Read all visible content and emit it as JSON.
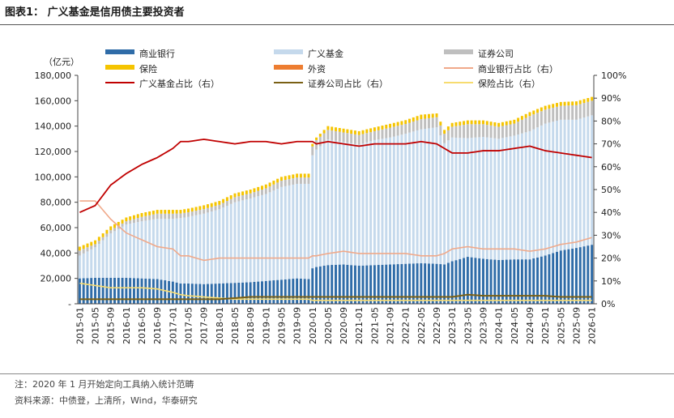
{
  "header": {
    "title": "图表1：  广义基金是信用债主要投资者"
  },
  "footer": {
    "note": "注：2020 年 1 月开始定向工具纳入统计范畴",
    "source": "资料来源：中债登，上清所，Wind，华泰研究"
  },
  "chart_data": {
    "type": "bar",
    "stacked": true,
    "title": "",
    "ylabel": "（亿元）",
    "ylim": [
      0,
      180000
    ],
    "y2lim": [
      0,
      1.0
    ],
    "y_ticks": [
      "-",
      "20,000",
      "40,000",
      "60,000",
      "80,000",
      "100,000",
      "120,000",
      "140,000",
      "160,000",
      "180,000"
    ],
    "y2_ticks": [
      "0%",
      "10%",
      "20%",
      "30%",
      "40%",
      "50%",
      "60%",
      "70%",
      "80%",
      "90%",
      "100%"
    ],
    "x_tick_labels": [
      "2015-01",
      "2015-05",
      "2015-09",
      "2016-01",
      "2016-05",
      "2016-09",
      "2017-01",
      "2017-05",
      "2017-09",
      "2018-01",
      "2018-05",
      "2018-09",
      "2019-01",
      "2019-05",
      "2019-09",
      "2020-01",
      "2020-05",
      "2020-09",
      "2021-01",
      "2021-05",
      "2021-09",
      "2022-01",
      "2022-05",
      "2022-09",
      "2023-01",
      "2023-05",
      "2023-09",
      "2024-01",
      "2024-05",
      "2024-09",
      "2025-01",
      "2025-05",
      "2025-09",
      "2026-01"
    ],
    "month_start": "2015-01",
    "month_end": "2026-01",
    "legend": [
      {
        "name": "商业银行",
        "kind": "bar",
        "color": "#2f6ca8"
      },
      {
        "name": "广义基金",
        "kind": "bar",
        "color": "#c5d9ec"
      },
      {
        "name": "证券公司",
        "kind": "bar",
        "color": "#bfbfbf"
      },
      {
        "name": "保险",
        "kind": "bar",
        "color": "#f5c400"
      },
      {
        "name": "外资",
        "kind": "bar",
        "color": "#ed7d31"
      },
      {
        "name": "商业银行占比（右）",
        "kind": "line",
        "color": "#f0a98a"
      },
      {
        "name": "广义基金占比（右）",
        "kind": "line",
        "color": "#c00000"
      },
      {
        "name": "证券公司占比（右）",
        "kind": "line",
        "color": "#7a6015"
      },
      {
        "name": "保险占比（右）",
        "kind": "line",
        "color": "#f7dc6f"
      }
    ],
    "anchors": {
      "note": "values at monthly anchor points; months between anchors are linearly interpolated",
      "months": [
        "2015-01",
        "2015-05",
        "2015-09",
        "2016-01",
        "2016-05",
        "2016-09",
        "2017-01",
        "2017-03",
        "2017-05",
        "2017-09",
        "2018-01",
        "2018-05",
        "2018-09",
        "2019-01",
        "2019-05",
        "2019-09",
        "2019-12",
        "2020-01",
        "2020-02",
        "2020-05",
        "2020-09",
        "2021-01",
        "2021-05",
        "2021-09",
        "2022-01",
        "2022-05",
        "2022-09",
        "2022-11",
        "2023-01",
        "2023-05",
        "2023-09",
        "2024-01",
        "2024-05",
        "2024-09",
        "2025-01",
        "2025-05",
        "2025-09",
        "2026-01"
      ],
      "total": [
        45000,
        50000,
        61000,
        70000,
        74000,
        77000,
        74000,
        72000,
        73000,
        76000,
        79000,
        85000,
        88000,
        92000,
        98000,
        100500,
        100500,
        126000,
        131000,
        143000,
        141000,
        139000,
        142000,
        145000,
        148000,
        153000,
        153000,
        140000,
        148000,
        148000,
        148000,
        146000,
        149000,
        155000,
        160000,
        163000,
        163500,
        167000
      ],
      "bank": [
        20000,
        20500,
        20500,
        20500,
        20000,
        19500,
        17500,
        16000,
        16000,
        15500,
        16000,
        16500,
        17000,
        18000,
        19000,
        20000,
        19500,
        28000,
        29000,
        30500,
        31000,
        30000,
        30500,
        31000,
        31500,
        32000,
        31500,
        31000,
        33500,
        37000,
        35500,
        34500,
        35000,
        35000,
        38000,
        42000,
        44000,
        46500
      ],
      "fund": [
        18000,
        24000,
        35000,
        42000,
        45000,
        47500,
        49500,
        51500,
        52500,
        55500,
        58500,
        63500,
        66000,
        68500,
        73000,
        74500,
        75000,
        89000,
        92500,
        99000,
        96500,
        95500,
        98500,
        100000,
        102500,
        105500,
        107500,
        95500,
        97500,
        93500,
        96000,
        95500,
        97500,
        101000,
        104000,
        103000,
        101000,
        102000
      ],
      "broker": [
        4000,
        2500,
        2500,
        2500,
        3500,
        4000,
        4000,
        3700,
        3600,
        3600,
        3500,
        4000,
        4000,
        4500,
        5000,
        5000,
        5000,
        7000,
        7500,
        7500,
        7500,
        7500,
        7000,
        7800,
        7700,
        8000,
        8000,
        7500,
        8500,
        11000,
        10000,
        9500,
        9500,
        12000,
        11000,
        11000,
        11500,
        11500
      ],
      "insurance": [
        3000,
        3000,
        3000,
        3000,
        3000,
        3000,
        3000,
        2800,
        2900,
        3000,
        3000,
        3000,
        3000,
        3000,
        3000,
        3000,
        3000,
        2000,
        2000,
        3000,
        3000,
        3000,
        3000,
        3000,
        3000,
        3500,
        3000,
        3000,
        3000,
        3000,
        3000,
        3000,
        3000,
        3000,
        3000,
        3000,
        3000,
        3000
      ],
      "foreign": [
        0,
        0,
        0,
        0,
        0,
        0,
        0,
        0,
        0,
        0,
        0,
        0,
        0,
        0,
        0,
        0,
        0,
        0,
        0,
        0,
        0,
        0,
        0,
        0,
        0,
        0,
        0,
        0,
        0,
        0,
        0,
        0,
        0,
        0,
        0,
        0,
        0,
        0
      ],
      "bank_share": [
        0.45,
        0.45,
        0.37,
        0.31,
        0.28,
        0.25,
        0.24,
        0.21,
        0.21,
        0.19,
        0.2,
        0.2,
        0.2,
        0.2,
        0.2,
        0.2,
        0.2,
        0.21,
        0.21,
        0.22,
        0.23,
        0.22,
        0.22,
        0.22,
        0.22,
        0.21,
        0.21,
        0.22,
        0.24,
        0.25,
        0.24,
        0.24,
        0.24,
        0.23,
        0.24,
        0.26,
        0.27,
        0.29
      ],
      "fund_share": [
        0.4,
        0.43,
        0.52,
        0.57,
        0.61,
        0.64,
        0.68,
        0.71,
        0.71,
        0.72,
        0.71,
        0.7,
        0.71,
        0.71,
        0.7,
        0.71,
        0.71,
        0.71,
        0.7,
        0.71,
        0.7,
        0.69,
        0.7,
        0.7,
        0.7,
        0.71,
        0.7,
        0.68,
        0.66,
        0.66,
        0.67,
        0.67,
        0.68,
        0.69,
        0.67,
        0.66,
        0.65,
        0.64
      ],
      "broker_share": [
        0.02,
        0.02,
        0.02,
        0.02,
        0.02,
        0.02,
        0.02,
        0.02,
        0.02,
        0.02,
        0.02,
        0.025,
        0.03,
        0.03,
        0.03,
        0.03,
        0.03,
        0.03,
        0.03,
        0.03,
        0.03,
        0.03,
        0.03,
        0.03,
        0.03,
        0.03,
        0.03,
        0.03,
        0.03,
        0.04,
        0.035,
        0.035,
        0.035,
        0.035,
        0.035,
        0.03,
        0.03,
        0.03
      ],
      "insurance_share": [
        0.09,
        0.08,
        0.07,
        0.07,
        0.07,
        0.065,
        0.05,
        0.04,
        0.035,
        0.03,
        0.025,
        0.02,
        0.02,
        0.02,
        0.02,
        0.02,
        0.02,
        0.015,
        0.015,
        0.015,
        0.015,
        0.015,
        0.015,
        0.015,
        0.015,
        0.015,
        0.015,
        0.015,
        0.015,
        0.015,
        0.015,
        0.015,
        0.015,
        0.015,
        0.015,
        0.015,
        0.015,
        0.015
      ]
    }
  }
}
